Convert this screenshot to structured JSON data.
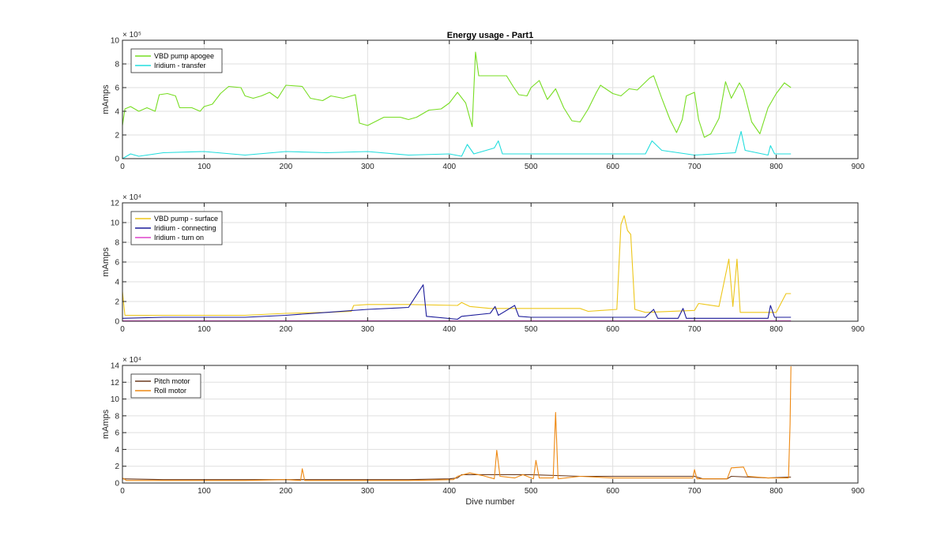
{
  "chart_data": [
    {
      "type": "line",
      "title": "Energy usage - Part1",
      "xlabel": "",
      "ylabel": "mAmps",
      "xlim": [
        0,
        900
      ],
      "ylim": [
        0,
        10
      ],
      "y_exponent": "× 10⁵",
      "x_ticks": [
        0,
        100,
        200,
        300,
        400,
        500,
        600,
        700,
        800,
        900
      ],
      "y_ticks": [
        0,
        2,
        4,
        6,
        8,
        10
      ],
      "grid": true,
      "legend_placement": "top-left",
      "series": [
        {
          "name": "VBD pump apogee",
          "color": "#77dd22",
          "points": [
            [
              0,
              2.8
            ],
            [
              3,
              4.2
            ],
            [
              10,
              4.4
            ],
            [
              20,
              4.0
            ],
            [
              30,
              4.3
            ],
            [
              40,
              4.0
            ],
            [
              45,
              5.4
            ],
            [
              55,
              5.5
            ],
            [
              65,
              5.3
            ],
            [
              70,
              4.3
            ],
            [
              85,
              4.3
            ],
            [
              95,
              4.0
            ],
            [
              100,
              4.4
            ],
            [
              110,
              4.6
            ],
            [
              120,
              5.5
            ],
            [
              130,
              6.1
            ],
            [
              145,
              6.0
            ],
            [
              150,
              5.3
            ],
            [
              160,
              5.1
            ],
            [
              170,
              5.3
            ],
            [
              180,
              5.6
            ],
            [
              190,
              5.1
            ],
            [
              200,
              6.2
            ],
            [
              220,
              6.1
            ],
            [
              230,
              5.1
            ],
            [
              245,
              4.9
            ],
            [
              255,
              5.3
            ],
            [
              270,
              5.1
            ],
            [
              285,
              5.4
            ],
            [
              290,
              3.0
            ],
            [
              300,
              2.8
            ],
            [
              320,
              3.5
            ],
            [
              340,
              3.5
            ],
            [
              350,
              3.3
            ],
            [
              360,
              3.5
            ],
            [
              375,
              4.1
            ],
            [
              390,
              4.2
            ],
            [
              400,
              4.7
            ],
            [
              410,
              5.6
            ],
            [
              420,
              4.7
            ],
            [
              428,
              2.7
            ],
            [
              432,
              9.0
            ],
            [
              436,
              7.0
            ],
            [
              470,
              7.0
            ],
            [
              478,
              6.1
            ],
            [
              485,
              5.4
            ],
            [
              495,
              5.3
            ],
            [
              500,
              6.0
            ],
            [
              510,
              6.6
            ],
            [
              520,
              5.0
            ],
            [
              530,
              5.9
            ],
            [
              540,
              4.3
            ],
            [
              550,
              3.2
            ],
            [
              560,
              3.1
            ],
            [
              570,
              4.2
            ],
            [
              580,
              5.6
            ],
            [
              585,
              6.2
            ],
            [
              600,
              5.5
            ],
            [
              610,
              5.3
            ],
            [
              620,
              5.9
            ],
            [
              630,
              5.8
            ],
            [
              645,
              6.8
            ],
            [
              650,
              7.0
            ],
            [
              660,
              5.1
            ],
            [
              670,
              3.3
            ],
            [
              678,
              2.2
            ],
            [
              685,
              3.3
            ],
            [
              690,
              5.3
            ],
            [
              700,
              5.6
            ],
            [
              705,
              3.3
            ],
            [
              712,
              1.8
            ],
            [
              720,
              2.1
            ],
            [
              730,
              3.4
            ],
            [
              738,
              6.5
            ],
            [
              745,
              5.1
            ],
            [
              755,
              6.4
            ],
            [
              760,
              5.8
            ],
            [
              770,
              3.1
            ],
            [
              780,
              2.1
            ],
            [
              790,
              4.3
            ],
            [
              800,
              5.5
            ],
            [
              810,
              6.4
            ],
            [
              818,
              6.0
            ]
          ]
        },
        {
          "name": "Iridium - transfer",
          "color": "#22dddd",
          "points": [
            [
              0,
              0.0
            ],
            [
              10,
              0.4
            ],
            [
              20,
              0.2
            ],
            [
              50,
              0.5
            ],
            [
              100,
              0.6
            ],
            [
              150,
              0.3
            ],
            [
              200,
              0.6
            ],
            [
              250,
              0.5
            ],
            [
              300,
              0.6
            ],
            [
              350,
              0.3
            ],
            [
              400,
              0.4
            ],
            [
              415,
              0.2
            ],
            [
              422,
              1.2
            ],
            [
              430,
              0.4
            ],
            [
              440,
              0.6
            ],
            [
              455,
              0.9
            ],
            [
              460,
              1.5
            ],
            [
              465,
              0.4
            ],
            [
              500,
              0.4
            ],
            [
              550,
              0.4
            ],
            [
              600,
              0.4
            ],
            [
              640,
              0.4
            ],
            [
              648,
              1.5
            ],
            [
              660,
              0.7
            ],
            [
              700,
              0.3
            ],
            [
              750,
              0.5
            ],
            [
              757,
              2.3
            ],
            [
              762,
              0.7
            ],
            [
              790,
              0.3
            ],
            [
              793,
              1.1
            ],
            [
              798,
              0.4
            ],
            [
              818,
              0.4
            ]
          ]
        }
      ]
    },
    {
      "type": "line",
      "title": "",
      "xlabel": "",
      "ylabel": "mAmps",
      "xlim": [
        0,
        900
      ],
      "ylim": [
        0,
        12
      ],
      "y_exponent": "× 10⁴",
      "x_ticks": [
        0,
        100,
        200,
        300,
        400,
        500,
        600,
        700,
        800,
        900
      ],
      "y_ticks": [
        0,
        2,
        4,
        6,
        8,
        10,
        12
      ],
      "grid": true,
      "legend_placement": "top-left",
      "series": [
        {
          "name": "VBD pump - surface",
          "color": "#edc61a",
          "points": [
            [
              0,
              3.0
            ],
            [
              3,
              0.6
            ],
            [
              50,
              0.6
            ],
            [
              100,
              0.6
            ],
            [
              150,
              0.6
            ],
            [
              200,
              0.8
            ],
            [
              250,
              0.9
            ],
            [
              280,
              1.0
            ],
            [
              283,
              1.6
            ],
            [
              300,
              1.7
            ],
            [
              350,
              1.7
            ],
            [
              410,
              1.6
            ],
            [
              415,
              1.9
            ],
            [
              425,
              1.5
            ],
            [
              450,
              1.3
            ],
            [
              500,
              1.3
            ],
            [
              560,
              1.3
            ],
            [
              570,
              1.0
            ],
            [
              605,
              1.2
            ],
            [
              610,
              9.8
            ],
            [
              614,
              10.7
            ],
            [
              618,
              9.2
            ],
            [
              622,
              8.8
            ],
            [
              627,
              1.2
            ],
            [
              640,
              0.9
            ],
            [
              700,
              1.1
            ],
            [
              705,
              1.8
            ],
            [
              730,
              1.5
            ],
            [
              742,
              6.3
            ],
            [
              747,
              1.5
            ],
            [
              752,
              6.3
            ],
            [
              756,
              0.9
            ],
            [
              800,
              0.9
            ],
            [
              812,
              2.8
            ],
            [
              818,
              2.8
            ]
          ]
        },
        {
          "name": "Iridium - connecting",
          "color": "#1a1a99",
          "points": [
            [
              0,
              0.3
            ],
            [
              50,
              0.4
            ],
            [
              100,
              0.4
            ],
            [
              150,
              0.4
            ],
            [
              200,
              0.6
            ],
            [
              250,
              0.9
            ],
            [
              300,
              1.2
            ],
            [
              350,
              1.4
            ],
            [
              368,
              3.7
            ],
            [
              372,
              0.5
            ],
            [
              410,
              0.2
            ],
            [
              415,
              0.5
            ],
            [
              450,
              0.8
            ],
            [
              456,
              1.5
            ],
            [
              460,
              0.6
            ],
            [
              480,
              1.6
            ],
            [
              485,
              0.5
            ],
            [
              500,
              0.4
            ],
            [
              550,
              0.4
            ],
            [
              600,
              0.4
            ],
            [
              640,
              0.4
            ],
            [
              650,
              1.2
            ],
            [
              655,
              0.3
            ],
            [
              680,
              0.3
            ],
            [
              686,
              1.3
            ],
            [
              690,
              0.3
            ],
            [
              740,
              0.3
            ],
            [
              790,
              0.3
            ],
            [
              793,
              1.6
            ],
            [
              798,
              0.4
            ],
            [
              818,
              0.4
            ]
          ]
        },
        {
          "name": "Iridium - turn on",
          "color": "#dd44cc",
          "points": [
            [
              0,
              0.05
            ],
            [
              200,
              0.05
            ],
            [
              400,
              0.05
            ],
            [
              600,
              0.05
            ],
            [
              818,
              0.05
            ]
          ]
        }
      ]
    },
    {
      "type": "line",
      "title": "",
      "xlabel": "Dive number",
      "ylabel": "mAmps",
      "xlim": [
        0,
        900
      ],
      "ylim": [
        0,
        14
      ],
      "y_exponent": "× 10⁴",
      "x_ticks": [
        0,
        100,
        200,
        300,
        400,
        500,
        600,
        700,
        800,
        900
      ],
      "y_ticks": [
        0,
        2,
        4,
        6,
        8,
        10,
        12,
        14
      ],
      "grid": true,
      "legend_placement": "top-left",
      "series": [
        {
          "name": "Pitch motor",
          "color": "#6b3a1e",
          "points": [
            [
              0,
              0.5
            ],
            [
              50,
              0.4
            ],
            [
              100,
              0.4
            ],
            [
              150,
              0.4
            ],
            [
              200,
              0.4
            ],
            [
              250,
              0.4
            ],
            [
              300,
              0.4
            ],
            [
              350,
              0.4
            ],
            [
              400,
              0.5
            ],
            [
              410,
              0.6
            ],
            [
              415,
              1.0
            ],
            [
              450,
              1.0
            ],
            [
              500,
              1.0
            ],
            [
              560,
              0.8
            ],
            [
              600,
              0.8
            ],
            [
              650,
              0.8
            ],
            [
              700,
              0.8
            ],
            [
              710,
              0.5
            ],
            [
              740,
              0.5
            ],
            [
              745,
              0.8
            ],
            [
              790,
              0.6
            ],
            [
              815,
              0.7
            ],
            [
              818,
              0.7
            ]
          ]
        },
        {
          "name": "Roll motor",
          "color": "#ee8811",
          "points": [
            [
              0,
              0.6
            ],
            [
              5,
              0.3
            ],
            [
              50,
              0.3
            ],
            [
              100,
              0.3
            ],
            [
              150,
              0.3
            ],
            [
              200,
              0.4
            ],
            [
              218,
              0.3
            ],
            [
              220,
              1.7
            ],
            [
              223,
              0.3
            ],
            [
              300,
              0.3
            ],
            [
              350,
              0.3
            ],
            [
              405,
              0.4
            ],
            [
              410,
              0.8
            ],
            [
              425,
              1.2
            ],
            [
              440,
              0.9
            ],
            [
              455,
              0.5
            ],
            [
              458,
              3.9
            ],
            [
              462,
              0.8
            ],
            [
              480,
              0.6
            ],
            [
              490,
              1.0
            ],
            [
              503,
              0.5
            ],
            [
              506,
              2.7
            ],
            [
              510,
              0.6
            ],
            [
              527,
              0.6
            ],
            [
              530,
              8.4
            ],
            [
              533,
              0.5
            ],
            [
              560,
              0.8
            ],
            [
              600,
              0.6
            ],
            [
              650,
              0.6
            ],
            [
              698,
              0.6
            ],
            [
              700,
              1.6
            ],
            [
              703,
              0.5
            ],
            [
              740,
              0.5
            ],
            [
              745,
              1.8
            ],
            [
              760,
              1.9
            ],
            [
              765,
              0.8
            ],
            [
              790,
              0.6
            ],
            [
              815,
              0.6
            ],
            [
              817,
              7.0
            ],
            [
              818,
              13.9
            ]
          ]
        }
      ]
    }
  ]
}
